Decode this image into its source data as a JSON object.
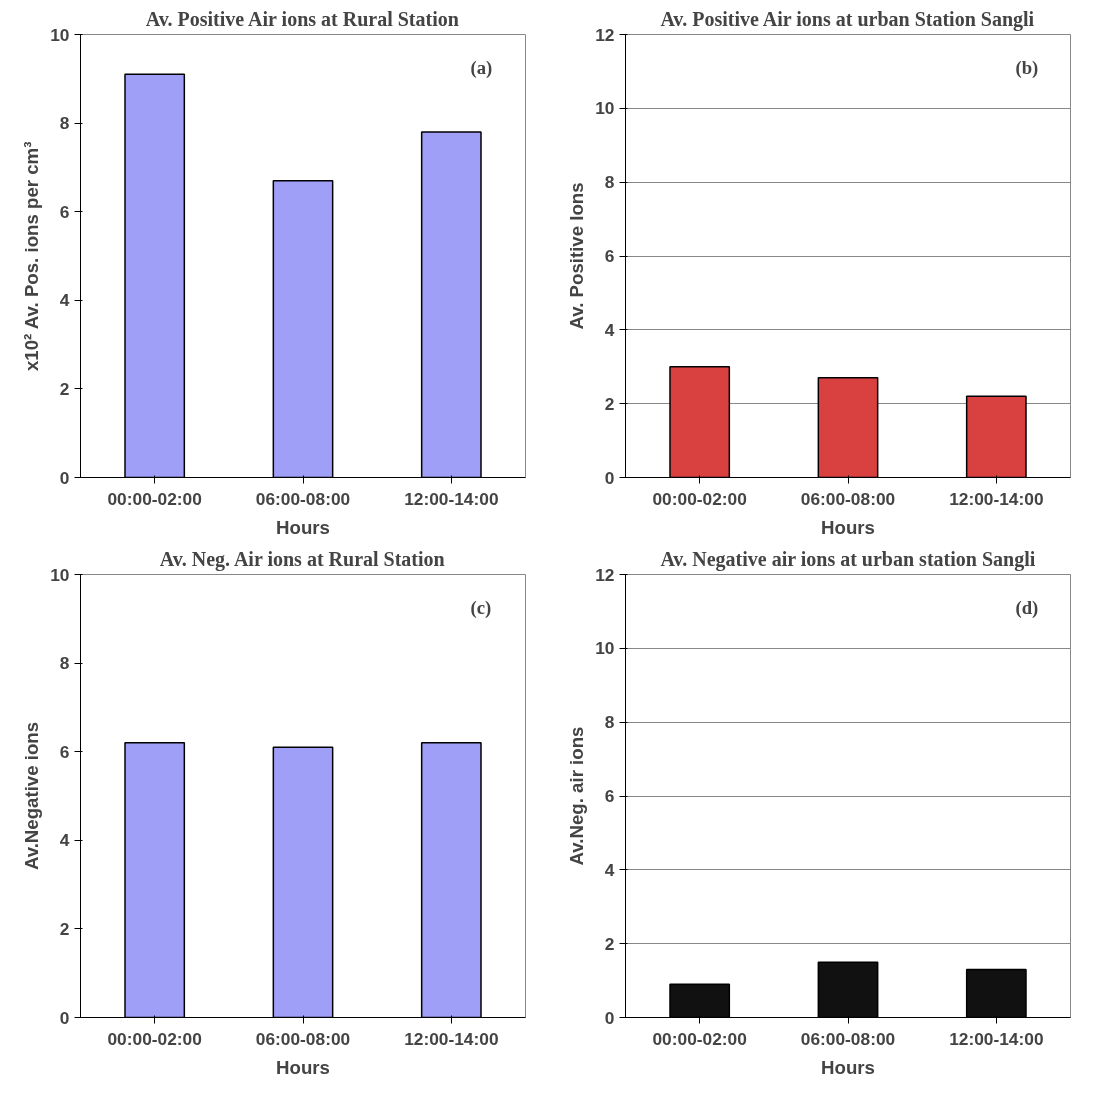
{
  "chart_data": [
    {
      "type": "bar",
      "title": "Av. Positive Air ions at Rural Station",
      "xlabel": "Hours",
      "ylabel": "x10² Av. Pos. ions per cm³",
      "categories": [
        "00:00-02:00",
        "06:00-08:00",
        "12:00-14:00"
      ],
      "values": [
        9.1,
        6.7,
        7.8
      ],
      "color": "#9f9ff8",
      "ylim": [
        0,
        10
      ],
      "yticks": [
        0,
        2,
        4,
        6,
        8,
        10
      ],
      "grid": false,
      "annotations": [
        "(a)"
      ]
    },
    {
      "type": "bar",
      "title": "Av. Positive Air ions at urban Station Sangli",
      "xlabel": "Hours",
      "ylabel": "Av. Positive Ions",
      "categories": [
        "00:00-02:00",
        "06:00-08:00",
        "12:00-14:00"
      ],
      "values": [
        3.0,
        2.7,
        2.2
      ],
      "color": "#d94040",
      "ylim": [
        0,
        12
      ],
      "yticks": [
        0,
        2,
        4,
        6,
        8,
        10,
        12
      ],
      "grid": "y",
      "annotations": [
        "(b)"
      ]
    },
    {
      "type": "bar",
      "title": "Av. Neg. Air ions at Rural Station",
      "xlabel": "Hours",
      "ylabel": "Av.Negative ions",
      "categories": [
        "00:00-02:00",
        "06:00-08:00",
        "12:00-14:00"
      ],
      "values": [
        6.2,
        6.1,
        6.2
      ],
      "color": "#9f9ff8",
      "ylim": [
        0,
        10
      ],
      "yticks": [
        0,
        2,
        4,
        6,
        8,
        10
      ],
      "grid": false,
      "annotations": [
        "(c)"
      ]
    },
    {
      "type": "bar",
      "title": "Av. Negative air ions at urban station Sangli",
      "xlabel": "Hours",
      "ylabel": "Av.Neg. air ions",
      "categories": [
        "00:00-02:00",
        "06:00-08:00",
        "12:00-14:00"
      ],
      "values": [
        0.9,
        1.5,
        1.3
      ],
      "color": "#111111",
      "ylim": [
        0,
        12
      ],
      "yticks": [
        0,
        2,
        4,
        6,
        8,
        10,
        12
      ],
      "grid": "y",
      "annotations": [
        "(d)"
      ]
    }
  ]
}
